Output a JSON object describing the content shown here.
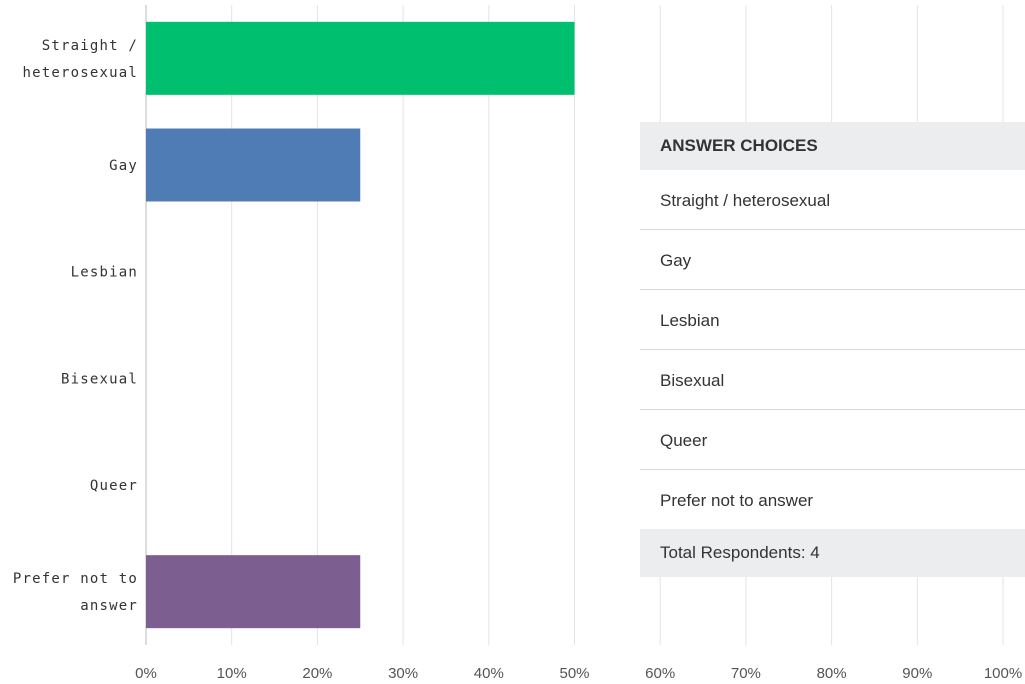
{
  "chart_data": {
    "type": "barh",
    "categories": [
      "Straight / heterosexual",
      "Gay",
      "Lesbian",
      "Bisexual",
      "Queer",
      "Prefer not to answer"
    ],
    "values": [
      50,
      25,
      0,
      0,
      0,
      25
    ],
    "colors": [
      "#00bf6f",
      "#507cb6",
      "#f9be00",
      "#6bc8cd",
      "#ff8b4f",
      "#7d5e90"
    ],
    "xlim": [
      0,
      100
    ],
    "xticks": [
      {
        "value": 0,
        "label": "0%"
      },
      {
        "value": 10,
        "label": "10%"
      },
      {
        "value": 20,
        "label": "20%"
      },
      {
        "value": 30,
        "label": "30%"
      },
      {
        "value": 40,
        "label": "40%"
      },
      {
        "value": 50,
        "label": "50%"
      },
      {
        "value": 60,
        "label": "60%"
      },
      {
        "value": 70,
        "label": "70%"
      },
      {
        "value": 80,
        "label": "80%"
      },
      {
        "value": 90,
        "label": "90%"
      },
      {
        "value": 100,
        "label": "100%"
      }
    ],
    "grid": true
  },
  "table": {
    "header": "ANSWER CHOICES",
    "rows": [
      "Straight / heterosexual",
      "Gay",
      "Lesbian",
      "Bisexual",
      "Queer",
      "Prefer not to answer"
    ],
    "footer": "Total Respondents: 4"
  }
}
